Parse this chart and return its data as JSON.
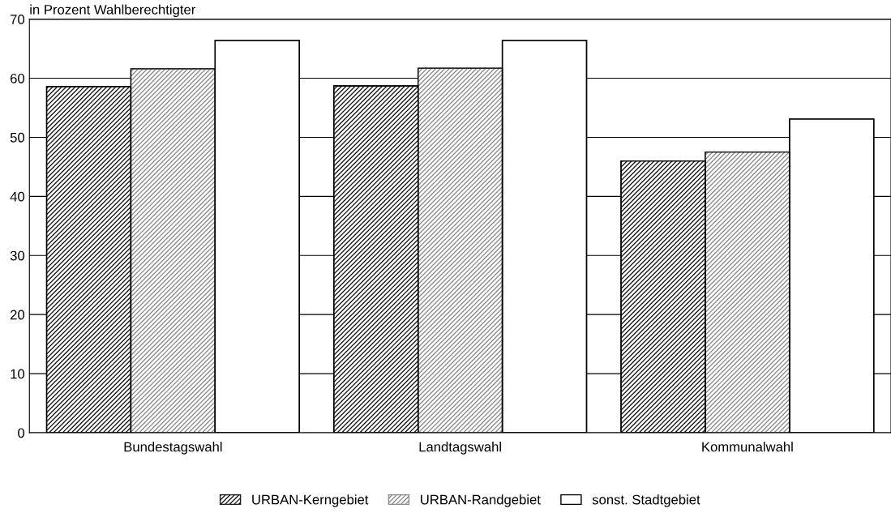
{
  "chart_data": {
    "type": "bar",
    "ylabel": "in Prozent Wahlberechtigter",
    "categories": [
      "Bundestagswahl",
      "Landtagswahl",
      "Kommunalwahl"
    ],
    "series": [
      {
        "name": "URBAN-Kerngebiet",
        "color": "#1a1a1a",
        "values": [
          58.6,
          58.7,
          46.0
        ]
      },
      {
        "name": "URBAN-Randgebiet",
        "color": "#8c8c8c",
        "values": [
          61.6,
          61.7,
          47.5
        ]
      },
      {
        "name": "sonst. Stadtgebiet",
        "color": "#ffffff",
        "values": [
          66.4,
          66.4,
          53.1
        ]
      }
    ],
    "ylim": [
      0,
      70
    ],
    "yticks": [
      0,
      10,
      20,
      30,
      40,
      50,
      60,
      70
    ],
    "grid": "y",
    "legend": "bottom"
  }
}
